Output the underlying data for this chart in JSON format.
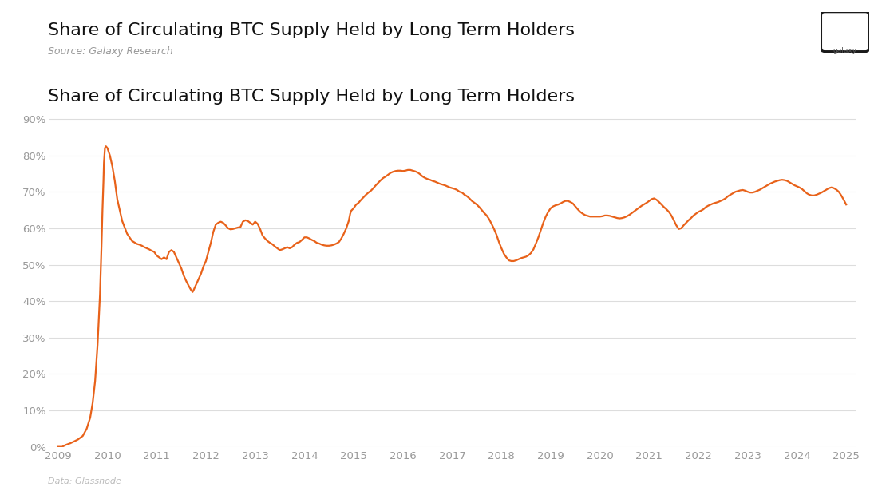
{
  "title": "Share of Circulating BTC Supply Held by Long Term Holders",
  "source": "Source: Galaxy Research",
  "data_source": "Data: Glassnode",
  "line_color": "#E8621A",
  "background_color": "#FFFFFF",
  "grid_color": "#DDDDDD",
  "ylim": [
    0,
    0.93
  ],
  "yticks": [
    0.0,
    0.1,
    0.2,
    0.3,
    0.4,
    0.5,
    0.6,
    0.7,
    0.8,
    0.9
  ],
  "ytick_labels": [
    "0%",
    "10%",
    "20%",
    "30%",
    "40%",
    "50%",
    "60%",
    "70%",
    "80%",
    "90%"
  ],
  "series": [
    [
      2009.0,
      0.0
    ],
    [
      2009.08,
      0.0
    ],
    [
      2009.15,
      0.005
    ],
    [
      2009.25,
      0.01
    ],
    [
      2009.4,
      0.02
    ],
    [
      2009.5,
      0.03
    ],
    [
      2009.58,
      0.05
    ],
    [
      2009.65,
      0.08
    ],
    [
      2009.7,
      0.12
    ],
    [
      2009.75,
      0.18
    ],
    [
      2009.8,
      0.28
    ],
    [
      2009.85,
      0.42
    ],
    [
      2009.88,
      0.55
    ],
    [
      2009.9,
      0.65
    ],
    [
      2009.92,
      0.73
    ],
    [
      2009.93,
      0.78
    ],
    [
      2009.95,
      0.82
    ],
    [
      2009.97,
      0.825
    ],
    [
      2010.0,
      0.82
    ],
    [
      2010.05,
      0.8
    ],
    [
      2010.1,
      0.77
    ],
    [
      2010.15,
      0.73
    ],
    [
      2010.2,
      0.68
    ],
    [
      2010.3,
      0.62
    ],
    [
      2010.4,
      0.585
    ],
    [
      2010.5,
      0.565
    ],
    [
      2010.6,
      0.557
    ],
    [
      2010.65,
      0.555
    ],
    [
      2010.7,
      0.552
    ],
    [
      2010.75,
      0.548
    ],
    [
      2010.85,
      0.542
    ],
    [
      2010.9,
      0.538
    ],
    [
      2010.95,
      0.535
    ],
    [
      2011.0,
      0.525
    ],
    [
      2011.05,
      0.52
    ],
    [
      2011.1,
      0.515
    ],
    [
      2011.15,
      0.52
    ],
    [
      2011.2,
      0.515
    ],
    [
      2011.25,
      0.535
    ],
    [
      2011.3,
      0.54
    ],
    [
      2011.35,
      0.535
    ],
    [
      2011.4,
      0.52
    ],
    [
      2011.45,
      0.505
    ],
    [
      2011.5,
      0.49
    ],
    [
      2011.55,
      0.47
    ],
    [
      2011.6,
      0.455
    ],
    [
      2011.65,
      0.442
    ],
    [
      2011.7,
      0.43
    ],
    [
      2011.73,
      0.425
    ],
    [
      2011.75,
      0.43
    ],
    [
      2011.8,
      0.445
    ],
    [
      2011.85,
      0.46
    ],
    [
      2011.9,
      0.475
    ],
    [
      2011.95,
      0.495
    ],
    [
      2012.0,
      0.51
    ],
    [
      2012.05,
      0.535
    ],
    [
      2012.1,
      0.56
    ],
    [
      2012.15,
      0.59
    ],
    [
      2012.2,
      0.61
    ],
    [
      2012.25,
      0.615
    ],
    [
      2012.3,
      0.618
    ],
    [
      2012.35,
      0.615
    ],
    [
      2012.4,
      0.608
    ],
    [
      2012.45,
      0.6
    ],
    [
      2012.5,
      0.597
    ],
    [
      2012.55,
      0.598
    ],
    [
      2012.6,
      0.6
    ],
    [
      2012.65,
      0.602
    ],
    [
      2012.7,
      0.603
    ],
    [
      2012.75,
      0.618
    ],
    [
      2012.8,
      0.622
    ],
    [
      2012.85,
      0.62
    ],
    [
      2012.9,
      0.615
    ],
    [
      2012.95,
      0.61
    ],
    [
      2013.0,
      0.618
    ],
    [
      2013.05,
      0.612
    ],
    [
      2013.1,
      0.598
    ],
    [
      2013.15,
      0.58
    ],
    [
      2013.2,
      0.572
    ],
    [
      2013.25,
      0.565
    ],
    [
      2013.3,
      0.56
    ],
    [
      2013.35,
      0.556
    ],
    [
      2013.4,
      0.55
    ],
    [
      2013.45,
      0.545
    ],
    [
      2013.5,
      0.54
    ],
    [
      2013.55,
      0.542
    ],
    [
      2013.6,
      0.545
    ],
    [
      2013.65,
      0.548
    ],
    [
      2013.7,
      0.545
    ],
    [
      2013.75,
      0.548
    ],
    [
      2013.8,
      0.555
    ],
    [
      2013.85,
      0.56
    ],
    [
      2013.9,
      0.562
    ],
    [
      2013.95,
      0.568
    ],
    [
      2014.0,
      0.575
    ],
    [
      2014.05,
      0.575
    ],
    [
      2014.1,
      0.572
    ],
    [
      2014.15,
      0.568
    ],
    [
      2014.2,
      0.565
    ],
    [
      2014.25,
      0.56
    ],
    [
      2014.3,
      0.558
    ],
    [
      2014.35,
      0.555
    ],
    [
      2014.4,
      0.553
    ],
    [
      2014.45,
      0.552
    ],
    [
      2014.5,
      0.552
    ],
    [
      2014.55,
      0.553
    ],
    [
      2014.6,
      0.555
    ],
    [
      2014.65,
      0.558
    ],
    [
      2014.7,
      0.562
    ],
    [
      2014.75,
      0.572
    ],
    [
      2014.8,
      0.585
    ],
    [
      2014.85,
      0.6
    ],
    [
      2014.9,
      0.62
    ],
    [
      2014.93,
      0.64
    ],
    [
      2014.95,
      0.648
    ],
    [
      2015.0,
      0.655
    ],
    [
      2015.05,
      0.665
    ],
    [
      2015.1,
      0.67
    ],
    [
      2015.15,
      0.678
    ],
    [
      2015.2,
      0.685
    ],
    [
      2015.25,
      0.692
    ],
    [
      2015.3,
      0.698
    ],
    [
      2015.35,
      0.703
    ],
    [
      2015.4,
      0.71
    ],
    [
      2015.45,
      0.718
    ],
    [
      2015.5,
      0.725
    ],
    [
      2015.55,
      0.732
    ],
    [
      2015.6,
      0.738
    ],
    [
      2015.65,
      0.742
    ],
    [
      2015.7,
      0.747
    ],
    [
      2015.75,
      0.752
    ],
    [
      2015.8,
      0.755
    ],
    [
      2015.85,
      0.757
    ],
    [
      2015.9,
      0.758
    ],
    [
      2015.95,
      0.758
    ],
    [
      2016.0,
      0.757
    ],
    [
      2016.05,
      0.758
    ],
    [
      2016.1,
      0.76
    ],
    [
      2016.15,
      0.76
    ],
    [
      2016.2,
      0.758
    ],
    [
      2016.25,
      0.756
    ],
    [
      2016.3,
      0.753
    ],
    [
      2016.35,
      0.748
    ],
    [
      2016.4,
      0.742
    ],
    [
      2016.45,
      0.738
    ],
    [
      2016.5,
      0.735
    ],
    [
      2016.55,
      0.733
    ],
    [
      2016.6,
      0.73
    ],
    [
      2016.65,
      0.728
    ],
    [
      2016.7,
      0.725
    ],
    [
      2016.75,
      0.722
    ],
    [
      2016.8,
      0.72
    ],
    [
      2016.85,
      0.718
    ],
    [
      2016.9,
      0.715
    ],
    [
      2016.95,
      0.712
    ],
    [
      2017.0,
      0.71
    ],
    [
      2017.05,
      0.708
    ],
    [
      2017.1,
      0.705
    ],
    [
      2017.15,
      0.7
    ],
    [
      2017.2,
      0.698
    ],
    [
      2017.25,
      0.692
    ],
    [
      2017.3,
      0.688
    ],
    [
      2017.35,
      0.682
    ],
    [
      2017.4,
      0.675
    ],
    [
      2017.45,
      0.67
    ],
    [
      2017.5,
      0.665
    ],
    [
      2017.55,
      0.658
    ],
    [
      2017.6,
      0.65
    ],
    [
      2017.65,
      0.642
    ],
    [
      2017.7,
      0.635
    ],
    [
      2017.75,
      0.625
    ],
    [
      2017.8,
      0.612
    ],
    [
      2017.85,
      0.598
    ],
    [
      2017.9,
      0.582
    ],
    [
      2017.95,
      0.562
    ],
    [
      2018.0,
      0.545
    ],
    [
      2018.05,
      0.53
    ],
    [
      2018.1,
      0.52
    ],
    [
      2018.15,
      0.512
    ],
    [
      2018.2,
      0.51
    ],
    [
      2018.25,
      0.51
    ],
    [
      2018.3,
      0.512
    ],
    [
      2018.35,
      0.515
    ],
    [
      2018.4,
      0.518
    ],
    [
      2018.45,
      0.52
    ],
    [
      2018.5,
      0.522
    ],
    [
      2018.55,
      0.526
    ],
    [
      2018.6,
      0.532
    ],
    [
      2018.65,
      0.542
    ],
    [
      2018.7,
      0.558
    ],
    [
      2018.75,
      0.575
    ],
    [
      2018.8,
      0.595
    ],
    [
      2018.85,
      0.615
    ],
    [
      2018.9,
      0.632
    ],
    [
      2018.95,
      0.645
    ],
    [
      2019.0,
      0.655
    ],
    [
      2019.05,
      0.66
    ],
    [
      2019.1,
      0.663
    ],
    [
      2019.15,
      0.665
    ],
    [
      2019.2,
      0.668
    ],
    [
      2019.25,
      0.672
    ],
    [
      2019.3,
      0.675
    ],
    [
      2019.35,
      0.675
    ],
    [
      2019.4,
      0.672
    ],
    [
      2019.45,
      0.668
    ],
    [
      2019.5,
      0.66
    ],
    [
      2019.55,
      0.652
    ],
    [
      2019.6,
      0.645
    ],
    [
      2019.65,
      0.64
    ],
    [
      2019.7,
      0.636
    ],
    [
      2019.75,
      0.634
    ],
    [
      2019.8,
      0.632
    ],
    [
      2019.85,
      0.632
    ],
    [
      2019.9,
      0.632
    ],
    [
      2019.95,
      0.632
    ],
    [
      2020.0,
      0.632
    ],
    [
      2020.05,
      0.633
    ],
    [
      2020.1,
      0.635
    ],
    [
      2020.15,
      0.635
    ],
    [
      2020.2,
      0.634
    ],
    [
      2020.25,
      0.632
    ],
    [
      2020.3,
      0.63
    ],
    [
      2020.35,
      0.628
    ],
    [
      2020.4,
      0.627
    ],
    [
      2020.45,
      0.628
    ],
    [
      2020.5,
      0.63
    ],
    [
      2020.55,
      0.633
    ],
    [
      2020.6,
      0.637
    ],
    [
      2020.65,
      0.642
    ],
    [
      2020.7,
      0.647
    ],
    [
      2020.75,
      0.652
    ],
    [
      2020.8,
      0.657
    ],
    [
      2020.85,
      0.662
    ],
    [
      2020.9,
      0.666
    ],
    [
      2020.95,
      0.67
    ],
    [
      2021.0,
      0.675
    ],
    [
      2021.05,
      0.68
    ],
    [
      2021.1,
      0.682
    ],
    [
      2021.15,
      0.678
    ],
    [
      2021.2,
      0.672
    ],
    [
      2021.25,
      0.665
    ],
    [
      2021.3,
      0.658
    ],
    [
      2021.35,
      0.652
    ],
    [
      2021.4,
      0.645
    ],
    [
      2021.45,
      0.635
    ],
    [
      2021.5,
      0.622
    ],
    [
      2021.55,
      0.608
    ],
    [
      2021.6,
      0.598
    ],
    [
      2021.65,
      0.6
    ],
    [
      2021.7,
      0.608
    ],
    [
      2021.75,
      0.615
    ],
    [
      2021.8,
      0.622
    ],
    [
      2021.85,
      0.628
    ],
    [
      2021.9,
      0.635
    ],
    [
      2021.95,
      0.64
    ],
    [
      2022.0,
      0.645
    ],
    [
      2022.05,
      0.648
    ],
    [
      2022.1,
      0.652
    ],
    [
      2022.15,
      0.658
    ],
    [
      2022.2,
      0.662
    ],
    [
      2022.25,
      0.665
    ],
    [
      2022.3,
      0.668
    ],
    [
      2022.35,
      0.67
    ],
    [
      2022.4,
      0.672
    ],
    [
      2022.45,
      0.675
    ],
    [
      2022.5,
      0.678
    ],
    [
      2022.55,
      0.682
    ],
    [
      2022.6,
      0.688
    ],
    [
      2022.65,
      0.692
    ],
    [
      2022.7,
      0.696
    ],
    [
      2022.75,
      0.7
    ],
    [
      2022.8,
      0.702
    ],
    [
      2022.85,
      0.704
    ],
    [
      2022.9,
      0.705
    ],
    [
      2022.95,
      0.703
    ],
    [
      2023.0,
      0.7
    ],
    [
      2023.05,
      0.698
    ],
    [
      2023.1,
      0.698
    ],
    [
      2023.15,
      0.7
    ],
    [
      2023.2,
      0.703
    ],
    [
      2023.25,
      0.706
    ],
    [
      2023.3,
      0.71
    ],
    [
      2023.35,
      0.714
    ],
    [
      2023.4,
      0.718
    ],
    [
      2023.45,
      0.722
    ],
    [
      2023.5,
      0.725
    ],
    [
      2023.55,
      0.728
    ],
    [
      2023.6,
      0.73
    ],
    [
      2023.65,
      0.732
    ],
    [
      2023.7,
      0.733
    ],
    [
      2023.75,
      0.732
    ],
    [
      2023.8,
      0.73
    ],
    [
      2023.85,
      0.726
    ],
    [
      2023.9,
      0.722
    ],
    [
      2023.95,
      0.718
    ],
    [
      2024.0,
      0.715
    ],
    [
      2024.05,
      0.712
    ],
    [
      2024.1,
      0.708
    ],
    [
      2024.15,
      0.702
    ],
    [
      2024.2,
      0.696
    ],
    [
      2024.25,
      0.692
    ],
    [
      2024.3,
      0.69
    ],
    [
      2024.35,
      0.69
    ],
    [
      2024.4,
      0.692
    ],
    [
      2024.45,
      0.695
    ],
    [
      2024.5,
      0.698
    ],
    [
      2024.55,
      0.702
    ],
    [
      2024.6,
      0.706
    ],
    [
      2024.65,
      0.71
    ],
    [
      2024.7,
      0.712
    ],
    [
      2024.75,
      0.71
    ],
    [
      2024.8,
      0.706
    ],
    [
      2024.85,
      0.7
    ],
    [
      2024.9,
      0.69
    ],
    [
      2024.95,
      0.678
    ],
    [
      2025.0,
      0.665
    ]
  ],
  "xticks": [
    2009,
    2010,
    2011,
    2012,
    2013,
    2014,
    2015,
    2016,
    2017,
    2018,
    2019,
    2020,
    2021,
    2022,
    2023,
    2024,
    2025
  ],
  "xlim": [
    2008.8,
    2025.2
  ],
  "title_fontsize": 16,
  "source_fontsize": 9,
  "tick_fontsize": 9.5,
  "line_width": 1.6
}
